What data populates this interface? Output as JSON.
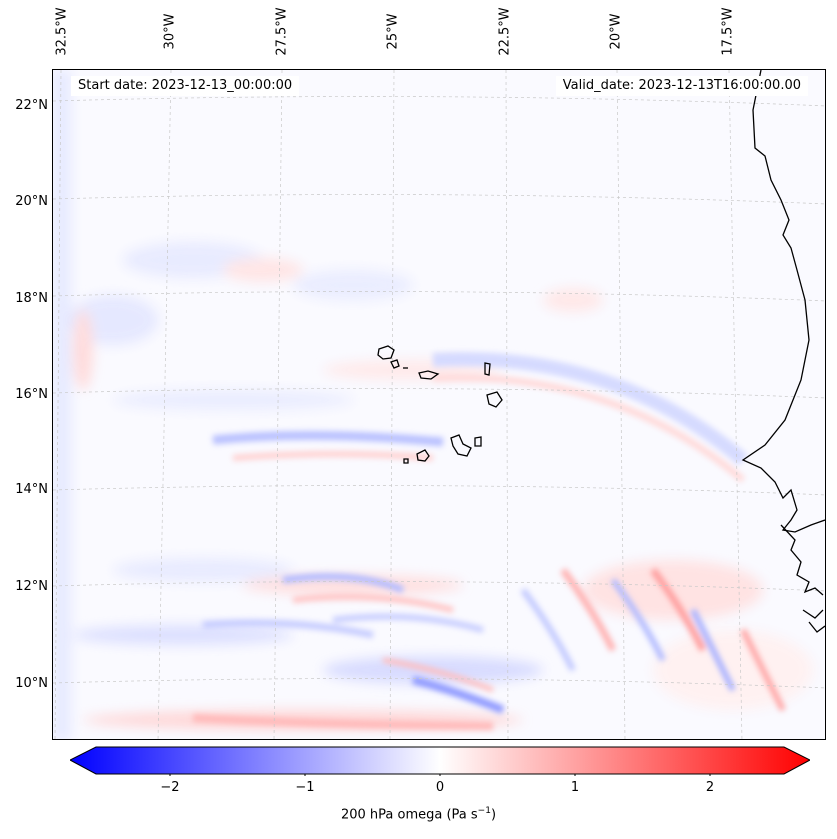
{
  "map": {
    "longitude_labels": [
      "32.5°W",
      "30°W",
      "27.5°W",
      "25°W",
      "22.5°W",
      "20°W",
      "17.5°W"
    ],
    "latitude_labels": [
      "22°N",
      "20°N",
      "18°N",
      "16°N",
      "14°N",
      "12°N",
      "10°N"
    ],
    "start_date": "Start date: 2023-12-13_00:00:00",
    "valid_date": "Valid_date: 2023-12-13T16:00:00.00"
  },
  "colorbar": {
    "label_main": "200 hPa omega (Pa s",
    "label_exp": "−1",
    "label_end": ")",
    "ticks": [
      "−2",
      "−1",
      "0",
      "1",
      "2"
    ],
    "range": [
      -2.7,
      2.7
    ],
    "colors": {
      "negative": "#0000ff",
      "zero": "#ffffff",
      "positive": "#ff0000"
    }
  }
}
